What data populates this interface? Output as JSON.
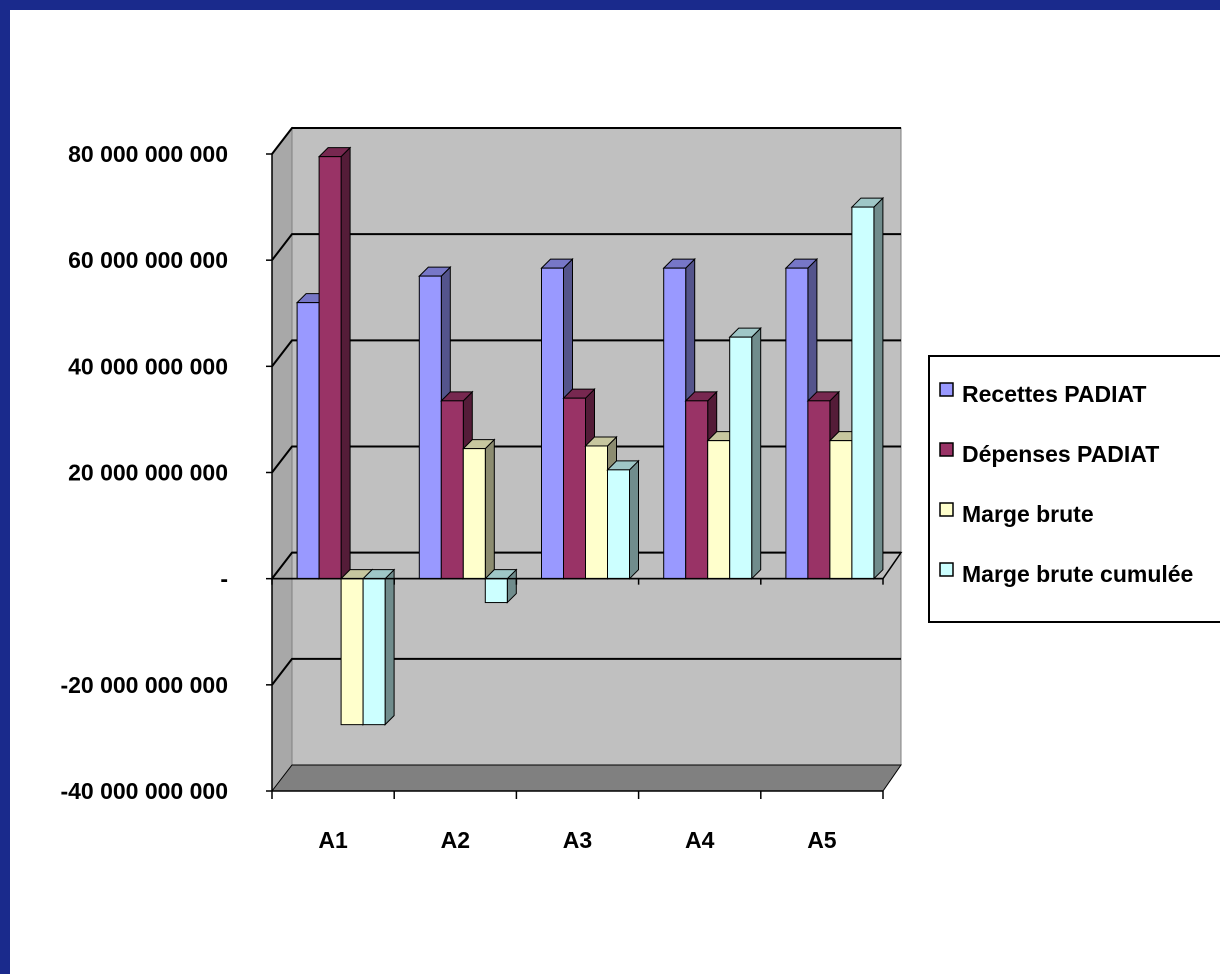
{
  "colors": {
    "background_border": "#1a2a8c",
    "plot_background": "#c0c0c0",
    "gridline": "#000000"
  },
  "chart_data": {
    "type": "bar",
    "title": "",
    "xlabel": "",
    "ylabel": "",
    "three_d": true,
    "categories": [
      "A1",
      "A2",
      "A3",
      "A4",
      "A5"
    ],
    "ylim": [
      -40000000000,
      80000000000
    ],
    "yticks": [
      80000000000,
      60000000000,
      40000000000,
      20000000000,
      0,
      -20000000000,
      -40000000000
    ],
    "ytick_labels": [
      "80 000 000 000",
      "60 000 000 000",
      "40 000 000 000",
      "20 000 000 000",
      "-",
      "-20 000 000 000",
      "-40 000 000 000"
    ],
    "grid": true,
    "legend_position": "right",
    "series": [
      {
        "name": "Recettes PADIAT",
        "color": "#9999ff",
        "values": [
          52000000000,
          57000000000,
          58500000000,
          58500000000,
          58500000000
        ]
      },
      {
        "name": "Dépenses PADIAT",
        "color": "#993366",
        "values": [
          79500000000,
          33500000000,
          34000000000,
          33500000000,
          33500000000
        ]
      },
      {
        "name": "Marge brute",
        "color": "#ffffcc",
        "values": [
          -27500000000,
          24500000000,
          25000000000,
          26000000000,
          26000000000
        ]
      },
      {
        "name": "Marge brute cumulée",
        "color": "#ccffff",
        "values": [
          -27500000000,
          -4500000000,
          20500000000,
          45500000000,
          70000000000
        ]
      }
    ]
  }
}
